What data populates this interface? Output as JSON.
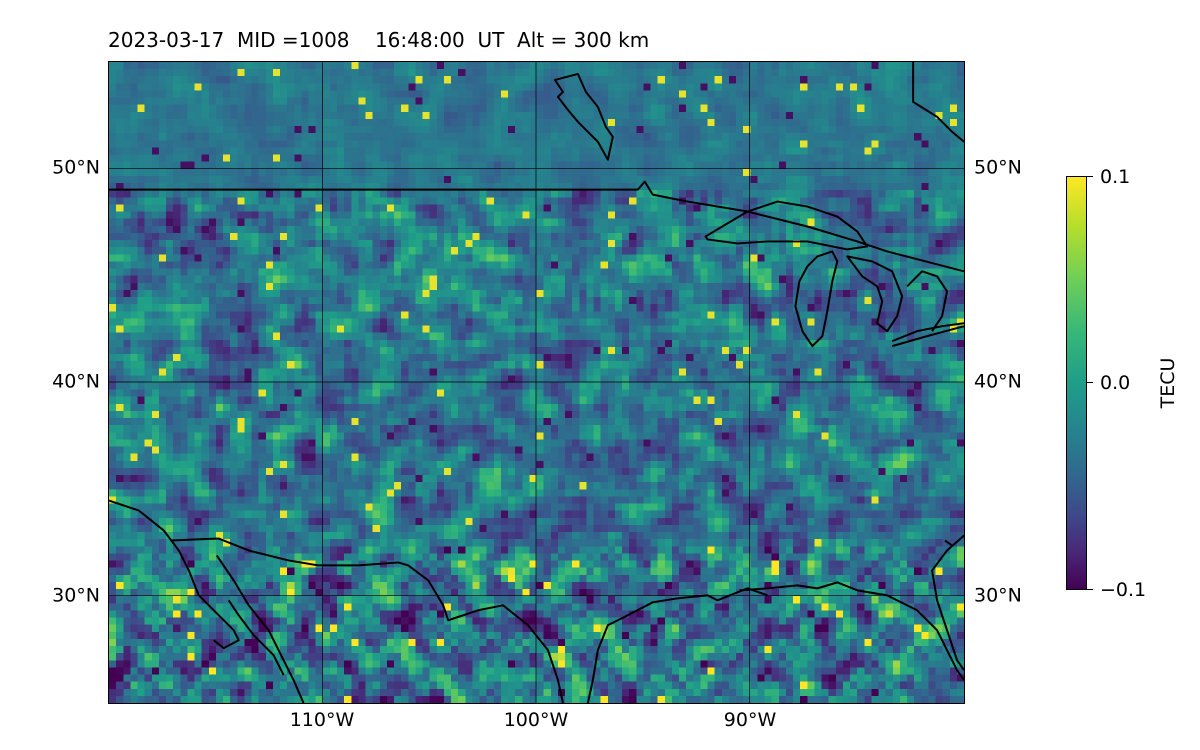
{
  "title": "2023-03-17  MID =1008    16:48:00  UT  Alt = 300 km",
  "map": {
    "projection": "plate-carree",
    "lon_range": [
      -120,
      -80
    ],
    "lat_range": [
      25,
      55
    ],
    "coastline_color": "#000000",
    "grid_color": "#000000",
    "colormap": "viridis",
    "lat_labels": [
      "50°N",
      "40°N",
      "30°N"
    ],
    "lon_labels": [
      "110°W",
      "100°W",
      "90°W"
    ]
  },
  "colorbar": {
    "label": "TECU",
    "ticks": [
      "0.1",
      "0.0",
      "−0.1"
    ],
    "vmin": -0.1,
    "vmax": 0.1
  }
}
